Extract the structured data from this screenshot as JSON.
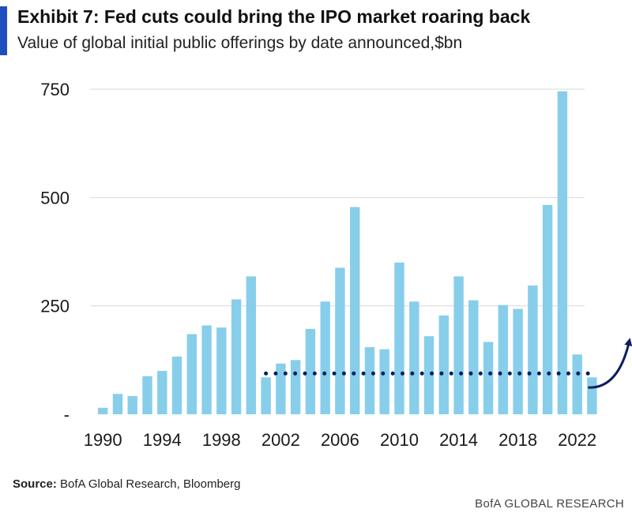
{
  "header": {
    "title": "Exhibit 7: Fed cuts could bring the IPO market roaring back",
    "subtitle": "Value of global initial public offerings by date announced,$bn"
  },
  "footer": {
    "source_label": "Source:",
    "source_text": "BofA Global Research, Bloomberg",
    "brand": "BofA GLOBAL RESEARCH"
  },
  "colors": {
    "bar": "#87ceeb",
    "accent": "#1f4fbf",
    "dotted_line": "#0b1f5c",
    "arrow": "#0b1f5c"
  },
  "chart_data": {
    "type": "bar",
    "title": "Exhibit 7: Fed cuts could bring the IPO market roaring back",
    "subtitle": "Value of global initial public offerings by date announced,$bn",
    "xlabel": "",
    "ylabel": "",
    "ylim": [
      0,
      750
    ],
    "yticks": [
      0,
      250,
      500,
      750
    ],
    "ytick_labels": [
      "-",
      "250",
      "500",
      "750"
    ],
    "xtick_labels": [
      "1990",
      "1994",
      "1998",
      "2002",
      "2006",
      "2010",
      "2014",
      "2018",
      "2022"
    ],
    "categories": [
      "1990",
      "1991",
      "1992",
      "1993",
      "1994",
      "1995",
      "1996",
      "1997",
      "1998",
      "1999",
      "2000",
      "2001",
      "2002",
      "2003",
      "2004",
      "2005",
      "2006",
      "2007",
      "2008",
      "2009",
      "2010",
      "2011",
      "2012",
      "2013",
      "2014",
      "2015",
      "2016",
      "2017",
      "2018",
      "2019",
      "2020",
      "2021",
      "2022",
      "2023"
    ],
    "values": [
      15,
      47,
      42,
      88,
      100,
      133,
      185,
      205,
      200,
      265,
      318,
      85,
      117,
      125,
      197,
      260,
      338,
      478,
      155,
      150,
      350,
      260,
      180,
      228,
      318,
      263,
      167,
      252,
      243,
      297,
      483,
      745,
      138,
      85
    ],
    "reference_line": {
      "style": "dotted",
      "value": 85,
      "from": "2001",
      "to": "2023"
    },
    "annotation": "upward-arrow"
  }
}
